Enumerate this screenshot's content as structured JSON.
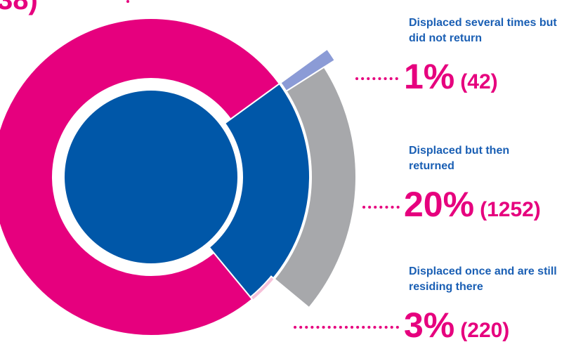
{
  "chart_data": {
    "type": "pie",
    "fragment": "38)",
    "categories": [
      "Displaced several times but did not return",
      "Displaced but then returned",
      "Displaced once and are still residing there"
    ],
    "values": [
      1,
      20,
      3
    ],
    "value_labels": [
      "1%",
      "20%",
      "3%"
    ],
    "counts": [
      42,
      1252,
      220
    ],
    "count_labels": [
      "(42)",
      "(1252)",
      "(220)"
    ],
    "colors": [
      "#8b9bd6",
      "#a7a8ab",
      "#f6bfd8"
    ]
  }
}
